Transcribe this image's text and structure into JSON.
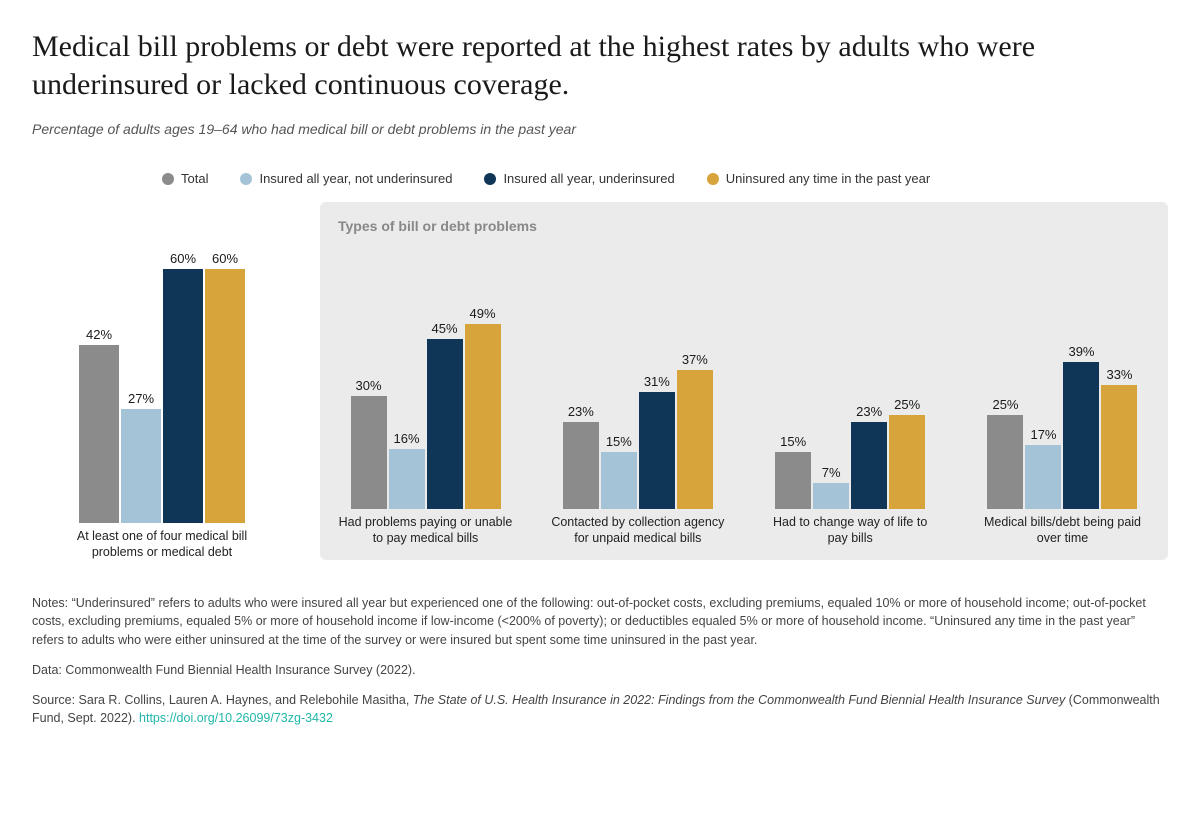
{
  "title": "Medical bill problems or debt were reported at the highest rates by adults who were underinsured or lacked continuous coverage.",
  "subtitle": "Percentage of adults ages 19–64 who had medical bill or debt problems in the past year",
  "legend": [
    {
      "label": "Total",
      "color": "#8b8b8b"
    },
    {
      "label": "Insured all year, not underinsured",
      "color": "#a4c3d6"
    },
    {
      "label": "Insured all year, underinsured",
      "color": "#0f3557"
    },
    {
      "label": "Uninsured any time in the past year",
      "color": "#d7a43b"
    }
  ],
  "chart": {
    "type": "bar",
    "y_max": 65,
    "bar_colors": [
      "#8b8b8b",
      "#a4c3d6",
      "#0f3557",
      "#d7a43b"
    ],
    "panel_left_bg": "#ffffff",
    "panel_right_bg": "#ebebeb",
    "panel_right_title": "Types of bill or debt problems",
    "label_fontsize": 13,
    "catlabel_fontsize": 12.5,
    "left_group": {
      "label": "At least one of four medical bill problems or medical debt",
      "values": [
        42,
        27,
        60,
        60
      ]
    },
    "right_groups": [
      {
        "label": "Had problems paying or unable to pay medical bills",
        "values": [
          30,
          16,
          45,
          49
        ]
      },
      {
        "label": "Contacted by collection agency for unpaid medical bills",
        "values": [
          23,
          15,
          31,
          37
        ]
      },
      {
        "label": "Had to change way of life to pay bills",
        "values": [
          15,
          7,
          23,
          25
        ]
      },
      {
        "label": "Medical bills/debt being paid over time",
        "values": [
          25,
          17,
          39,
          33
        ]
      }
    ]
  },
  "footer": {
    "notes": "Notes: “Underinsured” refers to adults who were insured all year but experienced one of the following: out-of-pocket costs, excluding premiums, equaled 10% or more of household income; out-of-pocket costs, excluding premiums, equaled 5% or more of household income if low-income (<200% of poverty); or deductibles equaled 5% or more of household income. “Uninsured any time in the past year” refers to adults who were either uninsured at the time of the survey or were insured but spent some time uninsured in the past year.",
    "data": "Data: Commonwealth Fund Biennial Health Insurance Survey (2022).",
    "source_prefix": "Source: Sara R. Collins, Lauren A. Haynes, and Relebohile Masitha, ",
    "source_title": "The State of U.S. Health Insurance in 2022: Findings from the Commonwealth Fund Biennial Health Insurance Survey",
    "source_suffix": " (Commonwealth Fund, Sept. 2022). ",
    "source_link_text": "https://doi.org/10.26099/73zg-3432",
    "source_link_href": "https://doi.org/10.26099/73zg-3432"
  }
}
